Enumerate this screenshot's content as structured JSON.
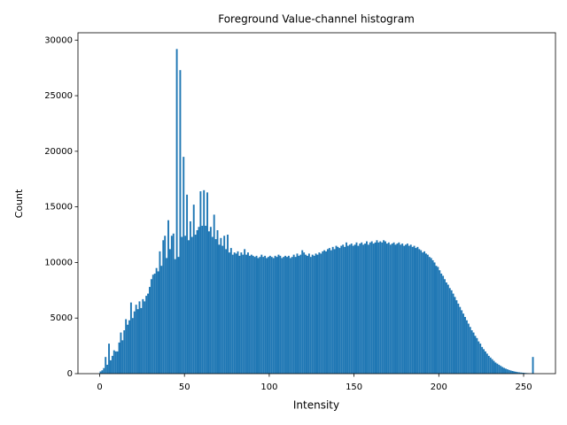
{
  "chart_data": {
    "type": "histogram",
    "title": "Foreground Value-channel histogram",
    "x_label": "Intensity",
    "y_label": "Count",
    "color": "#1f77b4",
    "bins": [
      0,
      1,
      2,
      3,
      4,
      5,
      6,
      7,
      8,
      9,
      10,
      11,
      12,
      13,
      14,
      15,
      16,
      17,
      18,
      19,
      20,
      21,
      22,
      23,
      24,
      25,
      26,
      27,
      28,
      29,
      30,
      31,
      32,
      33,
      34,
      35,
      36,
      37,
      38,
      39,
      40,
      41,
      42,
      43,
      44,
      45,
      46,
      47,
      48,
      49,
      50,
      51,
      52,
      53,
      54,
      55,
      56,
      57,
      58,
      59,
      60,
      61,
      62,
      63,
      64,
      65,
      66,
      67,
      68,
      69,
      70,
      71,
      72,
      73,
      74,
      75,
      76,
      77,
      78,
      79,
      80,
      81,
      82,
      83,
      84,
      85,
      86,
      87,
      88,
      89,
      90,
      91,
      92,
      93,
      94,
      95,
      96,
      97,
      98,
      99,
      100,
      101,
      102,
      103,
      104,
      105,
      106,
      107,
      108,
      109,
      110,
      111,
      112,
      113,
      114,
      115,
      116,
      117,
      118,
      119,
      120,
      121,
      122,
      123,
      124,
      125,
      126,
      127,
      128,
      129,
      130,
      131,
      132,
      133,
      134,
      135,
      136,
      137,
      138,
      139,
      140,
      141,
      142,
      143,
      144,
      145,
      146,
      147,
      148,
      149,
      150,
      151,
      152,
      153,
      154,
      155,
      156,
      157,
      158,
      159,
      160,
      161,
      162,
      163,
      164,
      165,
      166,
      167,
      168,
      169,
      170,
      171,
      172,
      173,
      174,
      175,
      176,
      177,
      178,
      179,
      180,
      181,
      182,
      183,
      184,
      185,
      186,
      187,
      188,
      189,
      190,
      191,
      192,
      193,
      194,
      195,
      196,
      197,
      198,
      199,
      200,
      201,
      202,
      203,
      204,
      205,
      206,
      207,
      208,
      209,
      210,
      211,
      212,
      213,
      214,
      215,
      216,
      217,
      218,
      219,
      220,
      221,
      222,
      223,
      224,
      225,
      226,
      227,
      228,
      229,
      230,
      231,
      232,
      233,
      234,
      235,
      236,
      237,
      238,
      239,
      240,
      241,
      242,
      243,
      244,
      245,
      246,
      247,
      248,
      249,
      250,
      251,
      252,
      253,
      254,
      255,
      256
    ],
    "counts": [
      200,
      300,
      500,
      1500,
      800,
      2700,
      1200,
      1600,
      2100,
      2000,
      2000,
      2800,
      3700,
      3000,
      3900,
      4900,
      4400,
      4800,
      6400,
      5000,
      5600,
      6200,
      5800,
      6500,
      5900,
      6700,
      6500,
      7000,
      7200,
      7800,
      8500,
      8900,
      9000,
      9500,
      9200,
      11000,
      9700,
      12000,
      12400,
      10400,
      13800,
      11200,
      12400,
      12600,
      10300,
      29200,
      10500,
      27300,
      12300,
      19500,
      12400,
      16100,
      12000,
      13700,
      12300,
      15200,
      12500,
      12900,
      13200,
      16400,
      13300,
      16500,
      13300,
      16300,
      12800,
      13200,
      12300,
      14300,
      12100,
      12900,
      11600,
      12200,
      11500,
      12400,
      11200,
      12500,
      10900,
      11300,
      10700,
      10900,
      10800,
      11000,
      10600,
      10900,
      10700,
      11200,
      10700,
      10900,
      10600,
      10700,
      10600,
      10500,
      10600,
      10400,
      10500,
      10700,
      10500,
      10600,
      10400,
      10500,
      10600,
      10500,
      10400,
      10600,
      10500,
      10700,
      10600,
      10400,
      10500,
      10600,
      10500,
      10600,
      10400,
      10500,
      10700,
      10500,
      10800,
      10600,
      10700,
      11100,
      10900,
      10700,
      10600,
      10800,
      10500,
      10700,
      10600,
      10800,
      10700,
      10900,
      10800,
      11000,
      11100,
      11000,
      11200,
      11300,
      11100,
      11400,
      11200,
      11500,
      11400,
      11300,
      11500,
      11600,
      11400,
      11800,
      11500,
      11600,
      11700,
      11500,
      11600,
      11800,
      11500,
      11700,
      11800,
      11600,
      11700,
      11900,
      11600,
      11800,
      11900,
      11700,
      11800,
      12000,
      11800,
      11900,
      11800,
      12000,
      11900,
      11700,
      11800,
      11600,
      11700,
      11800,
      11600,
      11700,
      11800,
      11600,
      11700,
      11500,
      11600,
      11700,
      11500,
      11600,
      11400,
      11500,
      11300,
      11400,
      11200,
      11100,
      10900,
      11000,
      10800,
      10700,
      10500,
      10400,
      10200,
      10000,
      9700,
      9600,
      9300,
      9000,
      8800,
      8500,
      8200,
      8000,
      7700,
      7500,
      7200,
      6900,
      6600,
      6300,
      6000,
      5700,
      5400,
      5100,
      4800,
      4500,
      4200,
      3900,
      3700,
      3400,
      3200,
      2900,
      2700,
      2400,
      2200,
      2000,
      1800,
      1600,
      1450,
      1300,
      1150,
      1000,
      900,
      800,
      700,
      600,
      520,
      450,
      390,
      330,
      280,
      240,
      200,
      170,
      140,
      120,
      100,
      85,
      70,
      55,
      45,
      35,
      25,
      1500
    ],
    "xlim": [
      -12.8,
      268.8
    ],
    "ylim": [
      0,
      30660
    ],
    "xticks": [
      0,
      50,
      100,
      150,
      200,
      250
    ],
    "yticks": [
      0,
      5000,
      10000,
      15000,
      20000,
      25000,
      30000
    ]
  }
}
